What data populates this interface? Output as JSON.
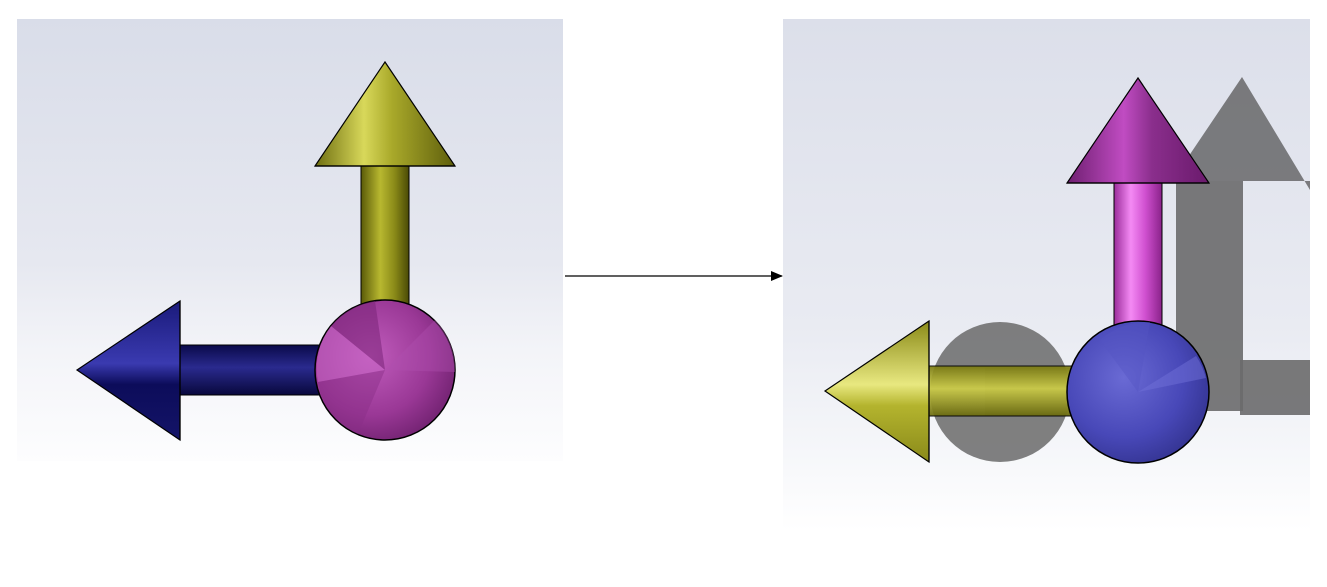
{
  "diagram": {
    "left_view": {
      "colors": {
        "vertical_arrow": "#b5b526",
        "horizontal_arrow": "#141480",
        "origin_sphere": "#a03d9e"
      }
    },
    "right_view": {
      "colors": {
        "vertical_arrow": "#c83ec8",
        "horizontal_arrow": "#c0c02a",
        "origin_sphere": "#4a4ab8",
        "shadow": "#6e6e6e"
      }
    },
    "transition": {
      "icon": "right-arrow-icon"
    }
  }
}
